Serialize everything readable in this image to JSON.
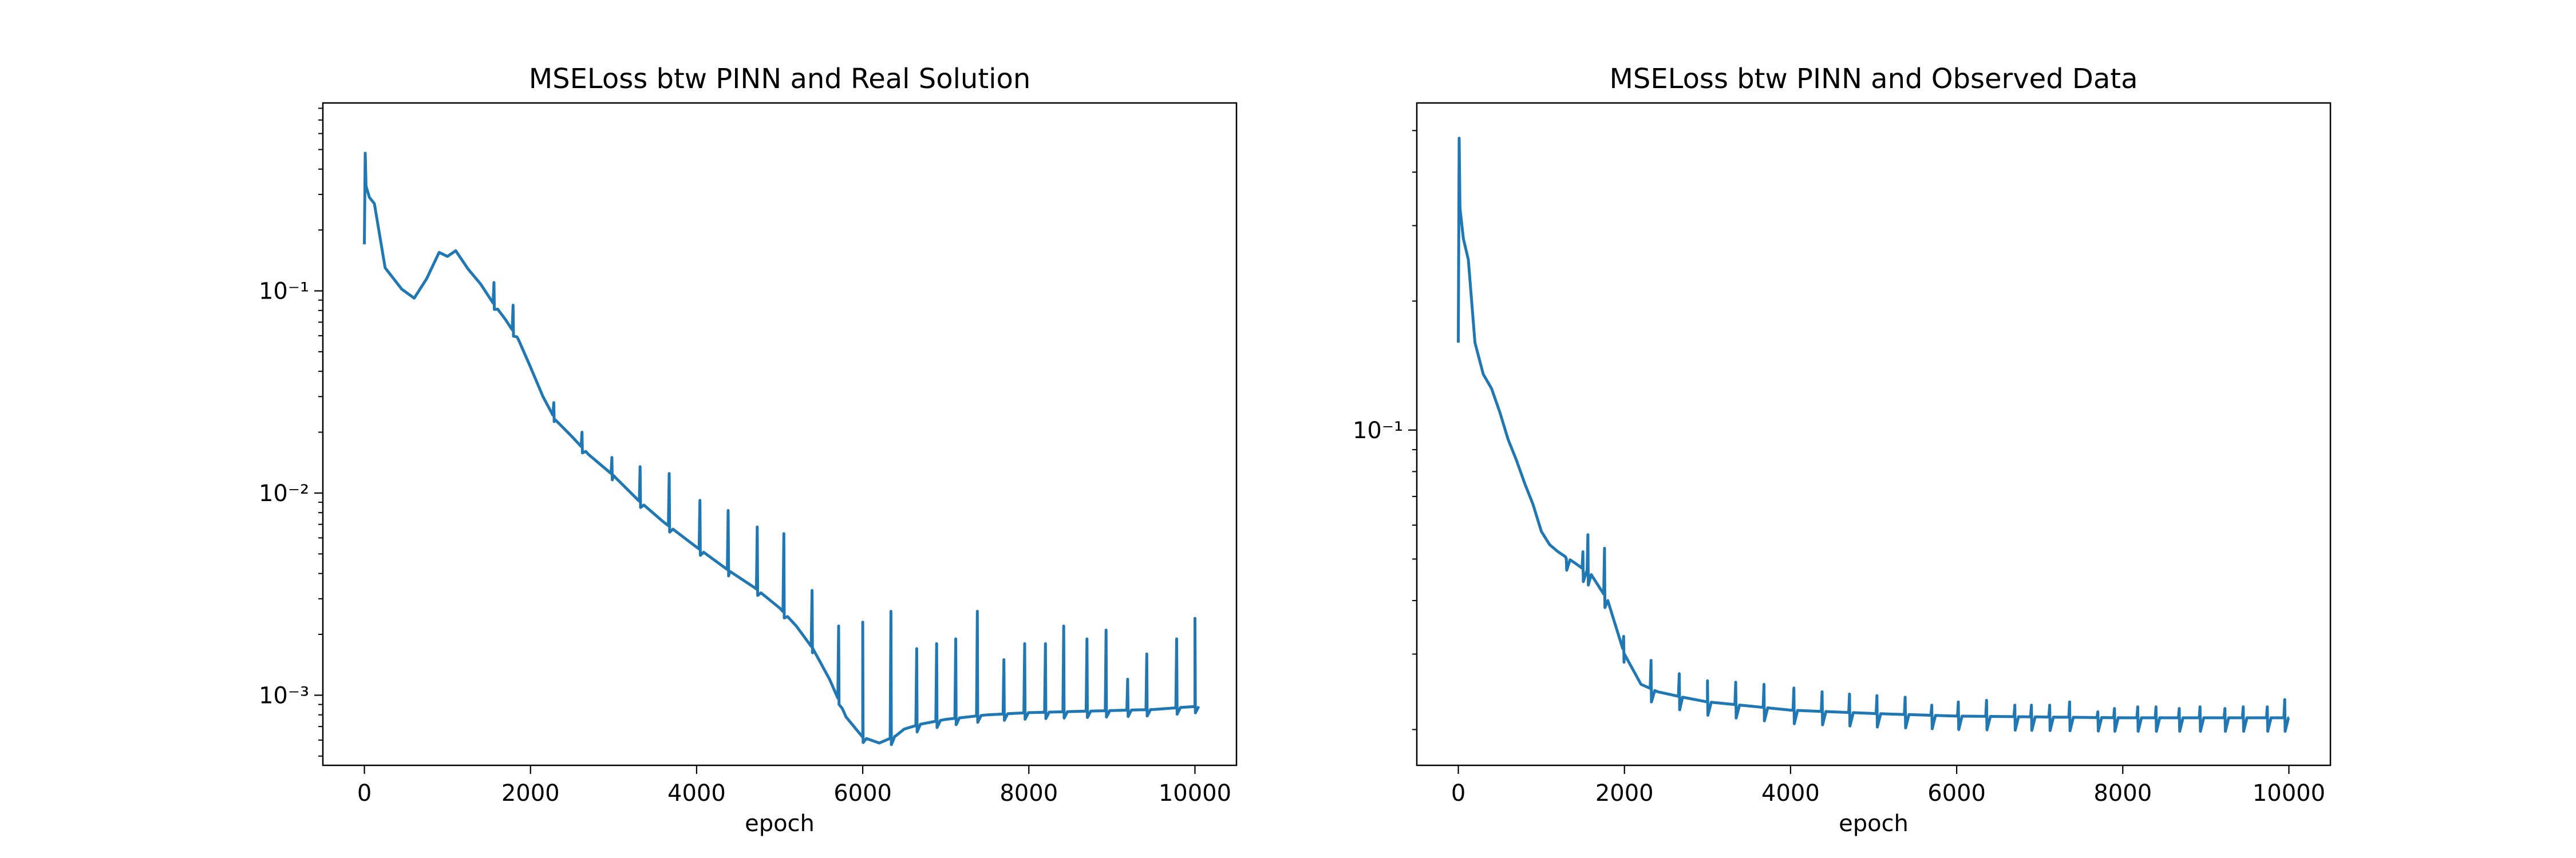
{
  "chart_data": [
    {
      "type": "line",
      "title": "MSELoss btw PINN and Real Solution",
      "xlabel": "epoch",
      "ylabel": "",
      "xlim": [
        -500,
        10500
      ],
      "ylim": [
        0.00045,
        0.85
      ],
      "yscale": "log",
      "grid": false,
      "legend": "none",
      "xticks": [
        0,
        2000,
        4000,
        6000,
        8000,
        10000
      ],
      "xtick_labels": [
        "0",
        "2000",
        "4000",
        "6000",
        "8000",
        "10000"
      ],
      "yticks": [
        0.001,
        0.01,
        0.1
      ],
      "ytick_labels": [
        "10⁻³",
        "10⁻²",
        "10⁻¹"
      ],
      "series": [
        {
          "color": "#1f77b4",
          "x": [
            0,
            10,
            20,
            60,
            120,
            250,
            450,
            600,
            750,
            900,
            1000,
            1100,
            1250,
            1400,
            1550,
            1700,
            1850,
            2000,
            2150,
            2300,
            2500,
            2700,
            3000,
            3300,
            3600,
            4000,
            4400,
            4700,
            5000,
            5200,
            5400,
            5600,
            5800,
            6000,
            6200,
            6400,
            6500,
            6700,
            7000,
            7500,
            8000,
            8500,
            9000,
            9500,
            10000
          ],
          "y": [
            0.17,
            0.48,
            0.33,
            0.29,
            0.27,
            0.13,
            0.102,
            0.092,
            0.115,
            0.155,
            0.148,
            0.158,
            0.128,
            0.108,
            0.087,
            0.072,
            0.058,
            0.042,
            0.03,
            0.023,
            0.019,
            0.0155,
            0.0122,
            0.0092,
            0.0072,
            0.0054,
            0.0041,
            0.0034,
            0.0027,
            0.0022,
            0.0017,
            0.0012,
            0.00078,
            0.00062,
            0.00058,
            0.00063,
            0.00068,
            0.00072,
            0.00076,
            0.0008,
            0.00082,
            0.00083,
            0.00084,
            0.00085,
            0.00088
          ],
          "spikes": [
            {
              "x": 1560,
              "y": 0.11
            },
            {
              "x": 1790,
              "y": 0.085
            },
            {
              "x": 2280,
              "y": 0.028
            },
            {
              "x": 2620,
              "y": 0.02
            },
            {
              "x": 2980,
              "y": 0.015
            },
            {
              "x": 3320,
              "y": 0.0135
            },
            {
              "x": 3670,
              "y": 0.0125
            },
            {
              "x": 4040,
              "y": 0.0092
            },
            {
              "x": 4380,
              "y": 0.0082
            },
            {
              "x": 4730,
              "y": 0.0068
            },
            {
              "x": 5050,
              "y": 0.0063
            },
            {
              "x": 5390,
              "y": 0.0033
            },
            {
              "x": 5710,
              "y": 0.0022
            },
            {
              "x": 6000,
              "y": 0.0023
            },
            {
              "x": 6340,
              "y": 0.0026
            },
            {
              "x": 6650,
              "y": 0.0017
            },
            {
              "x": 6890,
              "y": 0.0018
            },
            {
              "x": 7120,
              "y": 0.0019
            },
            {
              "x": 7380,
              "y": 0.0026
            },
            {
              "x": 7700,
              "y": 0.0015
            },
            {
              "x": 7950,
              "y": 0.0018
            },
            {
              "x": 8200,
              "y": 0.0018
            },
            {
              "x": 8420,
              "y": 0.0022
            },
            {
              "x": 8700,
              "y": 0.0019
            },
            {
              "x": 8930,
              "y": 0.0021
            },
            {
              "x": 9190,
              "y": 0.0012
            },
            {
              "x": 9420,
              "y": 0.0016
            },
            {
              "x": 9780,
              "y": 0.0019
            },
            {
              "x": 10000,
              "y": 0.0024
            }
          ]
        }
      ]
    },
    {
      "type": "line",
      "title": "MSELoss btw PINN and Observed Data",
      "xlabel": "epoch",
      "ylabel": "",
      "xlim": [
        -500,
        10500
      ],
      "ylim": [
        0.0165,
        0.58
      ],
      "yscale": "log",
      "grid": false,
      "legend": "none",
      "xticks": [
        0,
        2000,
        4000,
        6000,
        8000,
        10000
      ],
      "xtick_labels": [
        "0",
        "2000",
        "4000",
        "6000",
        "8000",
        "10000"
      ],
      "yticks": [
        0.1
      ],
      "ytick_labels": [
        "10⁻¹"
      ],
      "series": [
        {
          "color": "#1f77b4",
          "x": [
            0,
            10,
            20,
            60,
            120,
            200,
            300,
            400,
            500,
            600,
            700,
            800,
            900,
            1000,
            1100,
            1200,
            1400,
            1600,
            1800,
            2000,
            2200,
            2400,
            2700,
            3000,
            3500,
            4000,
            5000,
            6000,
            7000,
            8000,
            9000,
            10000
          ],
          "y": [
            0.16,
            0.48,
            0.33,
            0.28,
            0.25,
            0.16,
            0.135,
            0.125,
            0.11,
            0.095,
            0.085,
            0.075,
            0.067,
            0.058,
            0.054,
            0.052,
            0.049,
            0.046,
            0.04,
            0.03,
            0.0255,
            0.0245,
            0.0238,
            0.0232,
            0.0227,
            0.0222,
            0.0218,
            0.0215,
            0.0214,
            0.0213,
            0.0213,
            0.0213
          ],
          "spikes": [
            {
              "x": 1300,
              "y": 0.05
            },
            {
              "x": 1500,
              "y": 0.052
            },
            {
              "x": 1560,
              "y": 0.057
            },
            {
              "x": 1760,
              "y": 0.053
            },
            {
              "x": 1990,
              "y": 0.033
            },
            {
              "x": 2320,
              "y": 0.029
            },
            {
              "x": 2660,
              "y": 0.027
            },
            {
              "x": 3000,
              "y": 0.026
            },
            {
              "x": 3340,
              "y": 0.0258
            },
            {
              "x": 3680,
              "y": 0.0255
            },
            {
              "x": 4040,
              "y": 0.025
            },
            {
              "x": 4380,
              "y": 0.0245
            },
            {
              "x": 4710,
              "y": 0.0242
            },
            {
              "x": 5040,
              "y": 0.024
            },
            {
              "x": 5380,
              "y": 0.0238
            },
            {
              "x": 5700,
              "y": 0.0228
            },
            {
              "x": 6020,
              "y": 0.0232
            },
            {
              "x": 6360,
              "y": 0.0234
            },
            {
              "x": 6700,
              "y": 0.0228
            },
            {
              "x": 6900,
              "y": 0.0228
            },
            {
              "x": 7120,
              "y": 0.0228
            },
            {
              "x": 7360,
              "y": 0.0232
            },
            {
              "x": 7700,
              "y": 0.022
            },
            {
              "x": 7900,
              "y": 0.0224
            },
            {
              "x": 8180,
              "y": 0.0226
            },
            {
              "x": 8400,
              "y": 0.0226
            },
            {
              "x": 8680,
              "y": 0.0224
            },
            {
              "x": 8930,
              "y": 0.0226
            },
            {
              "x": 9230,
              "y": 0.0224
            },
            {
              "x": 9450,
              "y": 0.0226
            },
            {
              "x": 9740,
              "y": 0.0226
            },
            {
              "x": 9950,
              "y": 0.0235
            }
          ]
        }
      ]
    }
  ]
}
